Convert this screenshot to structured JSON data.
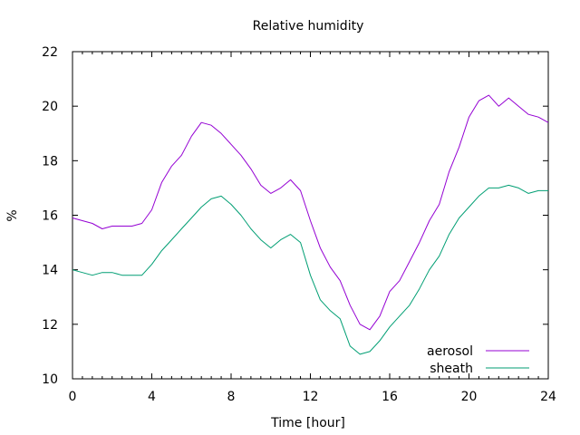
{
  "chart_data": {
    "type": "line",
    "title": "Relative humidity",
    "xlabel": "Time [hour]",
    "ylabel": "%",
    "xlim": [
      0,
      24
    ],
    "ylim": [
      10,
      22
    ],
    "xticks": [
      0,
      4,
      8,
      12,
      16,
      20,
      24
    ],
    "yticks": [
      10,
      12,
      14,
      16,
      18,
      20,
      22
    ],
    "grid": false,
    "legend_position": "bottom-right",
    "series": [
      {
        "name": "aerosol",
        "color": "#9400d3",
        "x": [
          0,
          0.5,
          1,
          1.5,
          2,
          2.5,
          3,
          3.5,
          4,
          4.5,
          5,
          5.5,
          6,
          6.5,
          7,
          7.5,
          8,
          8.5,
          9,
          9.5,
          10,
          10.5,
          11,
          11.5,
          12,
          12.5,
          13,
          13.5,
          14,
          14.5,
          15,
          15.5,
          16,
          16.5,
          17,
          17.5,
          18,
          18.5,
          19,
          19.5,
          20,
          20.5,
          21,
          21.5,
          22,
          22.5,
          23,
          23.5,
          24
        ],
        "values": [
          15.9,
          15.8,
          15.7,
          15.5,
          15.6,
          15.6,
          15.6,
          15.7,
          16.2,
          17.2,
          17.8,
          18.2,
          18.9,
          19.4,
          19.3,
          19.0,
          18.6,
          18.2,
          17.7,
          17.1,
          16.8,
          17.0,
          17.3,
          16.9,
          15.8,
          14.8,
          14.1,
          13.6,
          12.7,
          12.0,
          11.8,
          12.3,
          13.2,
          13.6,
          14.3,
          15.0,
          15.8,
          16.4,
          17.6,
          18.5,
          19.6,
          20.2,
          20.4,
          20.0,
          20.3,
          20.0,
          19.7,
          19.6,
          19.4
        ]
      },
      {
        "name": "sheath",
        "color": "#009e73",
        "x": [
          0,
          0.5,
          1,
          1.5,
          2,
          2.5,
          3,
          3.5,
          4,
          4.5,
          5,
          5.5,
          6,
          6.5,
          7,
          7.5,
          8,
          8.5,
          9,
          9.5,
          10,
          10.5,
          11,
          11.5,
          12,
          12.5,
          13,
          13.5,
          14,
          14.5,
          15,
          15.5,
          16,
          16.5,
          17,
          17.5,
          18,
          18.5,
          19,
          19.5,
          20,
          20.5,
          21,
          21.5,
          22,
          22.5,
          23,
          23.5,
          24
        ],
        "values": [
          14.0,
          13.9,
          13.8,
          13.9,
          13.9,
          13.8,
          13.8,
          13.8,
          14.2,
          14.7,
          15.1,
          15.5,
          15.9,
          16.3,
          16.6,
          16.7,
          16.4,
          16.0,
          15.5,
          15.1,
          14.8,
          15.1,
          15.3,
          15.0,
          13.8,
          12.9,
          12.5,
          12.2,
          11.2,
          10.9,
          11.0,
          11.4,
          11.9,
          12.3,
          12.7,
          13.3,
          14.0,
          14.5,
          15.3,
          15.9,
          16.3,
          16.7,
          17.0,
          17.0,
          17.1,
          17.0,
          16.8,
          16.9,
          16.9
        ]
      }
    ]
  }
}
